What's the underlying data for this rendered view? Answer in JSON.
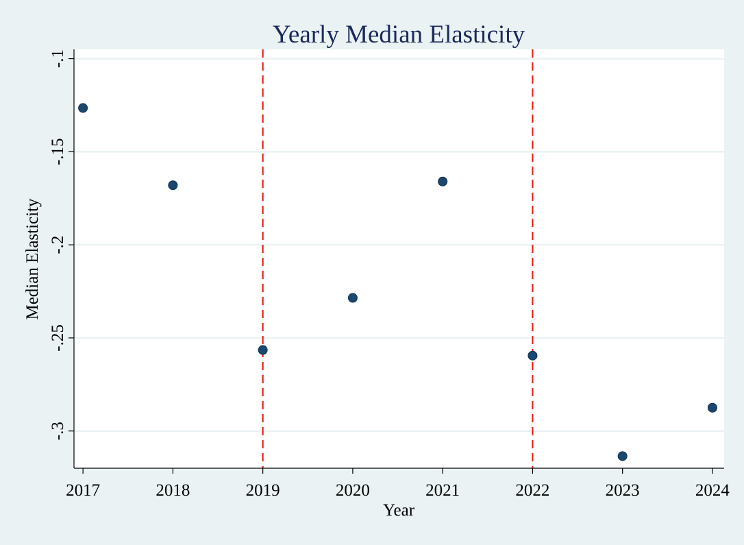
{
  "chart_data": {
    "type": "scatter",
    "title": "Yearly Median Elasticity",
    "xlabel": "Year",
    "ylabel": "Median Elasticity",
    "x": [
      2017,
      2018,
      2019,
      2020,
      2021,
      2022,
      2023,
      2024
    ],
    "xticks": [
      "2017",
      "2018",
      "2019",
      "2020",
      "2021",
      "2022",
      "2023",
      "2024"
    ],
    "yticks": [
      -0.1,
      -0.15,
      -0.2,
      -0.25,
      -0.3
    ],
    "ytick_labels": [
      "-.1",
      "-.15",
      "-.2",
      "-.25",
      "-.3"
    ],
    "ylim": [
      -0.32,
      -0.095
    ],
    "xlim": [
      2016.9,
      2024.13
    ],
    "series": [
      {
        "values": [
          -0.1265,
          -0.168,
          -0.2565,
          -0.2285,
          -0.166,
          -0.2595,
          -0.3135,
          -0.2875
        ]
      }
    ],
    "reference_lines": [
      {
        "x": 2019,
        "style": "dashed",
        "color": "#e8231c"
      },
      {
        "x": 2022,
        "style": "dashed",
        "color": "#e8231c"
      }
    ],
    "marker_color": "#1a476f",
    "grid": "horizontal"
  },
  "colors": {
    "background": "#eaf2f3",
    "plot_background": "#ffffff",
    "title": "#1a2a5a",
    "gridline": "#eaf2f3",
    "axis": "#000000"
  }
}
